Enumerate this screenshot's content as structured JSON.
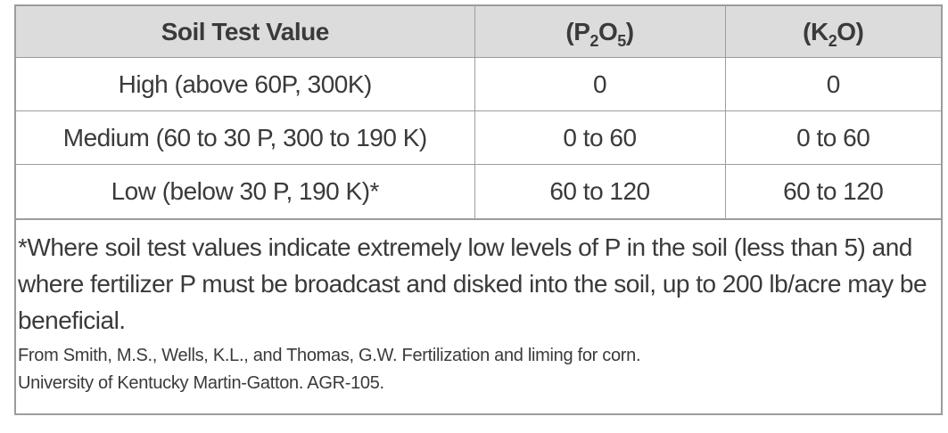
{
  "table": {
    "headers": {
      "col1": "Soil Test Value",
      "col2": {
        "open": "(P",
        "sub1": "2",
        "mid": "O",
        "sub2": "5",
        "close": ")"
      },
      "col3": {
        "open": "(K",
        "sub1": "2",
        "mid": "O)"
      }
    },
    "rows": [
      {
        "label": "High (above 60P, 300K)",
        "p2o5": "0",
        "k2o": "0"
      },
      {
        "label": "Medium (60 to 30 P, 300 to 190 K)",
        "p2o5": "0 to 60",
        "k2o": "0 to 60"
      },
      {
        "label": "Low (below 30 P, 190 K)*",
        "p2o5": "60 to 120",
        "k2o": "60 to 120"
      }
    ]
  },
  "footnote": {
    "text": "*Where soil test values indicate extremely low levels of P in the soil (less than 5) and where fertilizer P must be broadcast and disked into the soil, up to 200 lb/acre may be beneficial.",
    "source_line1": "From Smith, M.S., Wells, K.L., and Thomas, G.W. Fertilization and liming for corn.",
    "source_line2": "University of Kentucky Martin-Gatton. AGR-105."
  },
  "colors": {
    "header_background": "#dcdcdc",
    "border": "#9c9c9c",
    "text": "#3a3a3a"
  }
}
